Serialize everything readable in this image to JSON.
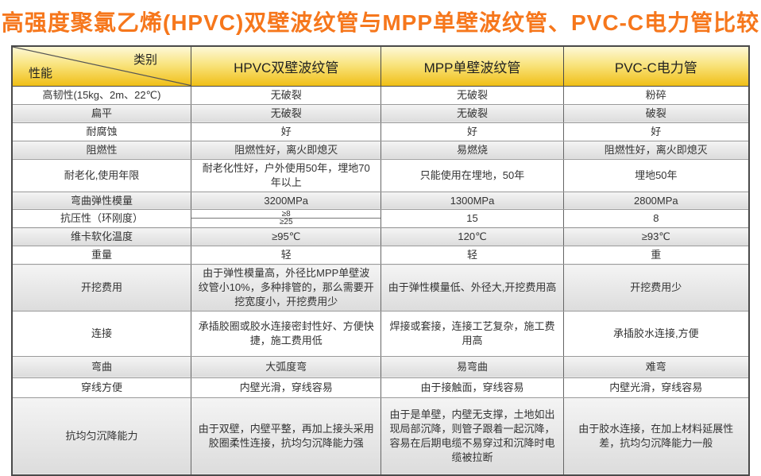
{
  "title": "高强度聚氯乙烯(HPVC)双壁波纹管与MPP单壁波纹管、PVC-C电力管比较",
  "colors": {
    "title_orange": "#f6771c",
    "header_grad_top": "#fdf8d7",
    "header_grad_mid": "#f9e47f",
    "header_grad_bottom": "#f0bf17",
    "row_shade_top": "#f4f4f4",
    "row_shade_bottom": "#dcdcdc",
    "border_dark": "#4a4a4a",
    "text_dark": "#333333"
  },
  "table": {
    "corner": {
      "category": "类别",
      "performance": "性能"
    },
    "columns": [
      "HPVC双壁波纹管",
      "MPP单壁波纹管",
      "PVC-C电力管"
    ],
    "rows": [
      {
        "label": "高韧性(15kg、2m、22℃)",
        "hpvc": "无破裂",
        "mpp": "无破裂",
        "pvcc": "粉碎",
        "shaded": false
      },
      {
        "label": "扁平",
        "hpvc": "无破裂",
        "mpp": "无破裂",
        "pvcc": "破裂",
        "shaded": true
      },
      {
        "label": "耐腐蚀",
        "hpvc": "好",
        "mpp": "好",
        "pvcc": "好",
        "shaded": false
      },
      {
        "label": "阻燃性",
        "hpvc": "阻燃性好，离火即熄灭",
        "mpp": "易燃烧",
        "pvcc": "阻燃性好，离火即熄灭",
        "shaded": true
      },
      {
        "label": "耐老化,使用年限",
        "hpvc": "耐老化性好，户外使用50年，埋地70年以上",
        "mpp": "只能使用在埋地，50年",
        "pvcc": "埋地50年",
        "shaded": false
      },
      {
        "label": "弯曲弹性模量",
        "hpvc": "3200MPa",
        "mpp": "1300MPa",
        "pvcc": "2800MPa",
        "shaded": true
      },
      {
        "label": "抗压性（环刚度）",
        "hpvc_split": [
          "≥8",
          "≥25"
        ],
        "mpp": "15",
        "pvcc": "8",
        "shaded": false
      },
      {
        "label": "维卡软化温度",
        "hpvc": "≥95℃",
        "mpp": "120℃",
        "pvcc": "≥93℃",
        "shaded": true
      },
      {
        "label": "重量",
        "hpvc": "轻",
        "mpp": "轻",
        "pvcc": "重",
        "shaded": false
      },
      {
        "label": "开挖费用",
        "hpvc": "由于弹性模量高，外径比MPP单壁波纹管小10%，多种排管的，那么需要开挖宽度小，开挖费用少",
        "mpp": "由于弹性模量低、外径大,开挖费用高",
        "pvcc": "开挖费用少",
        "shaded": true
      },
      {
        "label": "连接",
        "hpvc": "承插胶圈或胶水连接密封性好、方便快捷，施工费用低",
        "mpp": "焊接或套接，连接工艺复杂，施工费用高",
        "pvcc": "承插胶水连接,方便",
        "shaded": false
      },
      {
        "label": "弯曲",
        "hpvc": "大弧度弯",
        "mpp": "易弯曲",
        "pvcc": "难弯",
        "shaded": true
      },
      {
        "label": "穿线方便",
        "hpvc": "内壁光滑，穿线容易",
        "mpp": "由于接触面，穿线容易",
        "pvcc": "内壁光滑，穿线容易",
        "shaded": false
      },
      {
        "label": "抗均匀沉降能力",
        "hpvc": "由于双壁，内壁平整，再加上接头采用胶圈柔性连接，抗均匀沉降能力强",
        "mpp": "由于是单壁，内壁无支撑，土地如出现局部沉降，则管子跟着一起沉降，容易在后期电缆不易穿过和沉降时电缆被拉断",
        "pvcc": "由于胶水连接，在加上材料延展性差，抗均匀沉降能力一般",
        "shaded": true
      }
    ]
  }
}
